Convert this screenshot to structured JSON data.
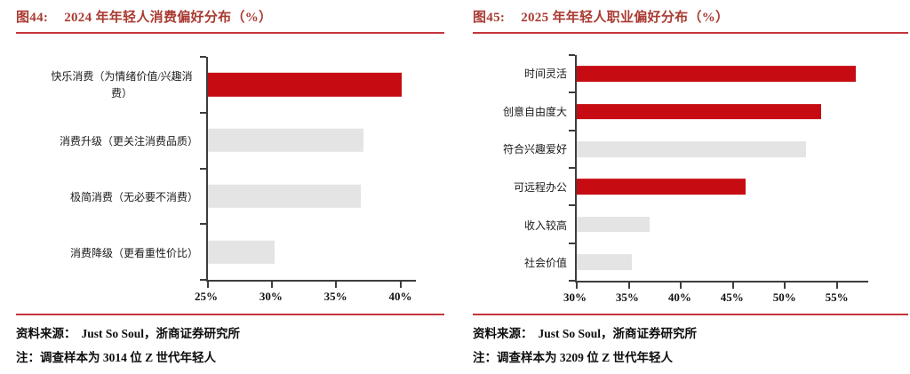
{
  "colors": {
    "title_red": "#A93B32",
    "rule_red": "#C2363B",
    "bar_red": "#C60C12",
    "bar_gray": "#E4E4E4",
    "axis": "#3d3d3d"
  },
  "chart_data": [
    {
      "type": "bar",
      "orientation": "horizontal",
      "fig_label": "图44:",
      "title": "2024 年年轻人消费偏好分布（%）",
      "categories": [
        "快乐消费（为情绪价值/兴趣消费）",
        "消费升级（更关注消费品质）",
        "极简消费（无必要不消费）",
        "消费降级（更看重性价比）"
      ],
      "values": [
        40.1,
        37.1,
        36.9,
        30.2
      ],
      "bar_colors": [
        "red",
        "gray",
        "gray",
        "gray"
      ],
      "xlim": [
        25,
        41.2
      ],
      "xticks": [
        25,
        30,
        35,
        40
      ],
      "tick_suffix": "%",
      "grid": false,
      "legend": false,
      "source_label": "资料来源：",
      "source_value": "Just So Soul，浙商证券研究所",
      "note": "注：调查样本为 3014 位 Z 世代年轻人"
    },
    {
      "type": "bar",
      "orientation": "horizontal",
      "fig_label": "图45:",
      "title": "2025 年年轻人职业偏好分布（%）",
      "categories": [
        "时间灵活",
        "创意自由度大",
        "符合兴趣爱好",
        "可远程办公",
        "收入较高",
        "社会价值"
      ],
      "values": [
        56.8,
        53.5,
        52.0,
        46.2,
        37.0,
        35.3
      ],
      "bar_colors": [
        "red",
        "red",
        "gray",
        "red",
        "gray",
        "gray"
      ],
      "xlim": [
        30,
        58
      ],
      "xticks": [
        30,
        35,
        40,
        45,
        50,
        55
      ],
      "tick_suffix": "%",
      "grid": false,
      "legend": false,
      "source_label": "资料来源：",
      "source_value": "Just So Soul，浙商证券研究所",
      "note": "注：调查样本为 3209 位 Z 世代年轻人"
    }
  ]
}
